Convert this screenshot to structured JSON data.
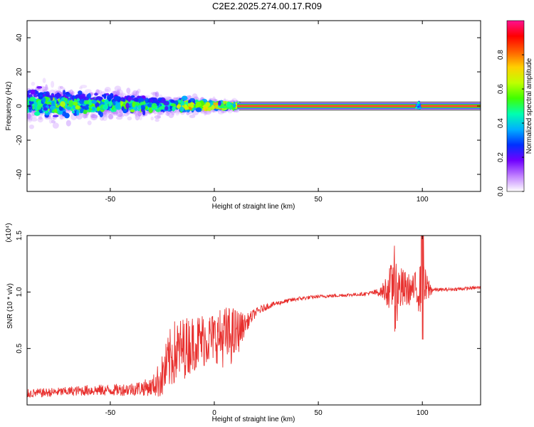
{
  "title": "C2E2.2025.274.00.17.R09",
  "colors": {
    "signal": "#e8302e",
    "frame": "#000000"
  },
  "chart_data": [
    {
      "type": "heatmap",
      "xlabel": "Height of straight line (km)",
      "ylabel": "Frequency (Hz)",
      "xlim": [
        -90,
        128
      ],
      "ylim": [
        -50,
        50
      ],
      "xticks": [
        -50,
        0,
        50,
        100
      ],
      "yticks": [
        -40,
        -20,
        0,
        20,
        40
      ],
      "xtick_labels": [
        "-50",
        "0",
        "50",
        "100"
      ],
      "ytick_labels": [
        "-40",
        "-20",
        "0",
        "20",
        "40"
      ],
      "band": {
        "x_start": 12,
        "x_end": 128,
        "frequency_center": 0,
        "frequency_halfwidth": 1.5
      },
      "scatter_region": {
        "x_start": -90,
        "x_end": 12,
        "frequency_spread_at_start": 14,
        "frequency_spread_at_end": 3
      },
      "colorbar": {
        "label": "Normalized spectral amplitude",
        "range": [
          0,
          1
        ],
        "ticks": [
          0.0,
          0.2,
          0.4,
          0.6,
          0.8
        ],
        "tick_labels": [
          "0.0",
          "0.2",
          "0.4",
          "0.6",
          "0.8"
        ],
        "colormap": [
          "#ffffff",
          "#c080ff",
          "#7000ff",
          "#0030ff",
          "#00b0ff",
          "#00ffb0",
          "#40ff00",
          "#c0ff00",
          "#ffd000",
          "#ff6000",
          "#ff0000",
          "#ff1090"
        ]
      }
    },
    {
      "type": "line",
      "xlabel": "Height of straight line (km)",
      "ylabel": "SNR (10 * v/v)",
      "y_multiplier": "(x10⁴)",
      "xlim": [
        -90,
        128
      ],
      "ylim": [
        0,
        1.5
      ],
      "xticks": [
        -50,
        0,
        50,
        100
      ],
      "yticks": [
        0.5,
        1.0,
        1.5
      ],
      "xtick_labels": [
        "-50",
        "0",
        "50",
        "100"
      ],
      "ytick_labels": [
        "0.5",
        "1.0",
        "1.5"
      ],
      "series": [
        {
          "x": [
            -90,
            -80,
            -70,
            -60,
            -50,
            -40,
            -30,
            -25,
            -20,
            -15,
            -10,
            -5,
            0,
            5,
            10,
            15,
            20,
            25,
            30,
            40,
            50,
            60,
            70,
            75,
            80,
            85,
            90,
            95,
            100,
            105,
            110,
            120,
            128
          ],
          "values": [
            0.1,
            0.11,
            0.12,
            0.13,
            0.13,
            0.14,
            0.16,
            0.25,
            0.45,
            0.5,
            0.55,
            0.58,
            0.6,
            0.6,
            0.62,
            0.72,
            0.82,
            0.87,
            0.9,
            0.94,
            0.96,
            0.97,
            0.98,
            0.99,
            1.0,
            1.04,
            1.02,
            1.02,
            1.03,
            1.02,
            1.02,
            1.03,
            1.04
          ],
          "spread": [
            0.04,
            0.04,
            0.04,
            0.05,
            0.05,
            0.06,
            0.08,
            0.2,
            0.3,
            0.28,
            0.25,
            0.25,
            0.22,
            0.28,
            0.25,
            0.08,
            0.04,
            0.03,
            0.02,
            0.02,
            0.015,
            0.015,
            0.015,
            0.02,
            0.04,
            0.22,
            0.2,
            0.12,
            0.25,
            0.02,
            0.015,
            0.015,
            0.015
          ]
        }
      ]
    }
  ]
}
